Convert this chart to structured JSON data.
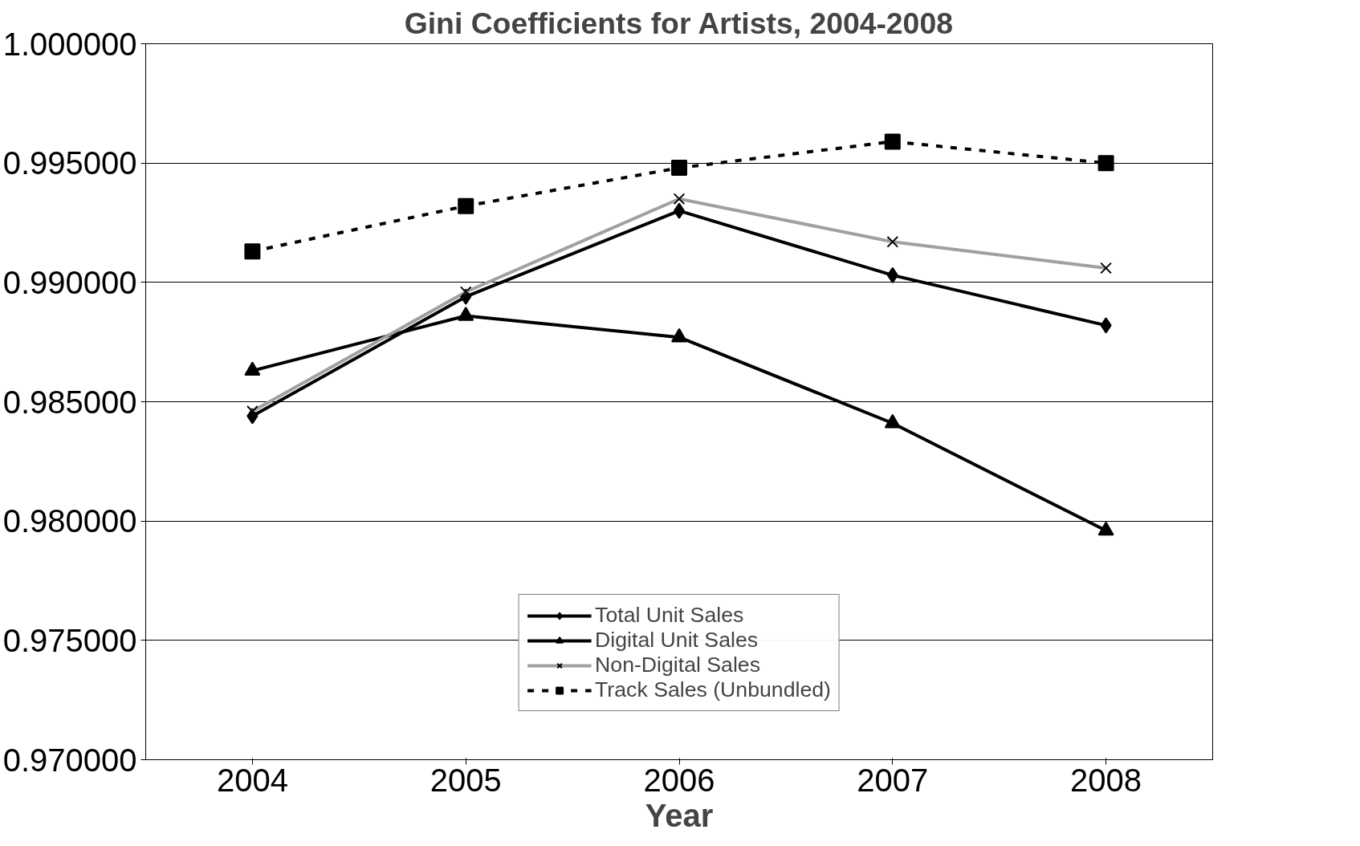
{
  "chart_data": {
    "type": "line",
    "title": "Gini Coefficients for Artists, 2004-2008",
    "xlabel": "Year",
    "categories": [
      "2004",
      "2005",
      "2006",
      "2007",
      "2008"
    ],
    "series": [
      {
        "name": "Total Unit Sales",
        "color": "#000000",
        "marker": "diamond",
        "line_style": "solid",
        "values": [
          0.9844,
          0.9894,
          0.993,
          0.9903,
          0.9882
        ]
      },
      {
        "name": "Digital Unit Sales",
        "color": "#000000",
        "marker": "triangle",
        "line_style": "solid",
        "values": [
          0.9863,
          0.9886,
          0.9877,
          0.9841,
          0.9796
        ]
      },
      {
        "name": "Non-Digital Sales",
        "color": "#a0a0a0",
        "marker": "cross",
        "line_style": "solid",
        "values": [
          0.9846,
          0.9896,
          0.9935,
          0.9917,
          0.9906
        ]
      },
      {
        "name": "Track Sales (Unbundled)",
        "color": "#000000",
        "marker": "square",
        "line_style": "dashed",
        "values": [
          0.9913,
          0.9932,
          0.9948,
          0.9959,
          0.995
        ]
      }
    ],
    "ylim": [
      0.97,
      1.0
    ],
    "yticks": [
      {
        "value": 0.97,
        "label": "0.970000"
      },
      {
        "value": 0.975,
        "label": "0.975000"
      },
      {
        "value": 0.98,
        "label": "0.980000"
      },
      {
        "value": 0.985,
        "label": "0.985000"
      },
      {
        "value": 0.99,
        "label": "0.990000"
      },
      {
        "value": 0.995,
        "label": "0.995000"
      },
      {
        "value": 1.0,
        "label": "1.000000"
      }
    ],
    "grid": "y",
    "legend": "bottom"
  }
}
